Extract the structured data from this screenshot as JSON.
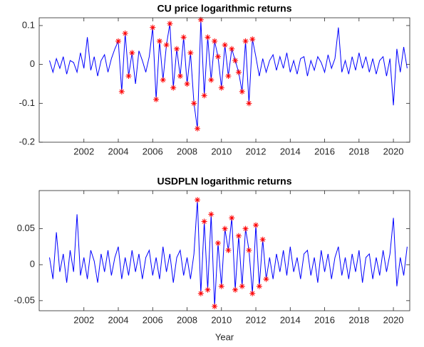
{
  "chart_data": [
    {
      "type": "line",
      "title": "CU price logarithmic returns",
      "xlim": [
        1999.4,
        2020.95
      ],
      "xticks": [
        2002,
        2004,
        2006,
        2008,
        2010,
        2012,
        2014,
        2016,
        2018,
        2020
      ],
      "ylim": [
        -0.2,
        0.12
      ],
      "yticks": [
        0.1,
        0,
        -0.1,
        -0.2
      ],
      "series": [
        {
          "color": "#0000ff",
          "line": true,
          "x": [
            2000,
            2000.2,
            2000.4,
            2000.6,
            2000.8,
            2001,
            2001.2,
            2001.4,
            2001.6,
            2001.8,
            2002,
            2002.2,
            2002.4,
            2002.6,
            2002.8,
            2003,
            2003.2,
            2003.4,
            2003.6,
            2003.8,
            2004,
            2004.2,
            2004.4,
            2004.6,
            2004.8,
            2005,
            2005.2,
            2005.4,
            2005.6,
            2005.8,
            2006,
            2006.2,
            2006.4,
            2006.6,
            2006.8,
            2007,
            2007.2,
            2007.4,
            2007.6,
            2007.8,
            2008,
            2008.2,
            2008.4,
            2008.6,
            2008.8,
            2009,
            2009.2,
            2009.4,
            2009.6,
            2009.8,
            2010,
            2010.2,
            2010.4,
            2010.6,
            2010.8,
            2011,
            2011.2,
            2011.4,
            2011.6,
            2011.8,
            2012,
            2012.2,
            2012.4,
            2012.6,
            2012.8,
            2013,
            2013.2,
            2013.4,
            2013.6,
            2013.8,
            2014,
            2014.2,
            2014.4,
            2014.6,
            2014.8,
            2015,
            2015.2,
            2015.4,
            2015.6,
            2015.8,
            2016,
            2016.2,
            2016.4,
            2016.6,
            2016.8,
            2017,
            2017.2,
            2017.4,
            2017.6,
            2017.8,
            2018,
            2018.2,
            2018.4,
            2018.6,
            2018.8,
            2019,
            2019.2,
            2019.4,
            2019.6,
            2019.8,
            2020,
            2020.2,
            2020.4,
            2020.6,
            2020.8
          ],
          "values": [
            0.01,
            -0.02,
            0.015,
            -0.01,
            0.02,
            -0.025,
            0.01,
            0.005,
            -0.02,
            0.03,
            -0.01,
            0.07,
            -0.015,
            0.02,
            -0.03,
            0.01,
            0.025,
            -0.02,
            0.015,
            0.04,
            0.06,
            -0.07,
            0.08,
            -0.03,
            0.03,
            -0.05,
            0.035,
            0.01,
            -0.02,
            0.02,
            0.095,
            -0.09,
            0.06,
            -0.04,
            0.05,
            0.105,
            -0.06,
            0.04,
            -0.03,
            0.07,
            -0.05,
            0.03,
            -0.1,
            -0.165,
            0.115,
            -0.08,
            0.07,
            -0.04,
            0.06,
            0.02,
            -0.06,
            0.05,
            -0.03,
            0.04,
            0.01,
            -0.02,
            -0.07,
            0.06,
            -0.1,
            0.065,
            0.02,
            -0.03,
            0.015,
            -0.02,
            0.01,
            0.025,
            -0.015,
            0.02,
            -0.01,
            0.03,
            -0.02,
            0.01,
            -0.025,
            0.015,
            0.02,
            -0.03,
            0.01,
            -0.015,
            0.02,
            0.005,
            -0.02,
            0.025,
            -0.01,
            0.015,
            0.095,
            -0.02,
            0.01,
            -0.025,
            0.02,
            -0.015,
            0.03,
            -0.01,
            0.02,
            -0.02,
            0.015,
            -0.025,
            0.01,
            0.02,
            -0.03,
            0.015,
            -0.105,
            0.04,
            -0.02,
            0.045,
            -0.01
          ]
        },
        {
          "color": "#ff0000",
          "line": false,
          "marker": "star",
          "x": [
            2004,
            2004.2,
            2004.4,
            2004.6,
            2004.8,
            2006,
            2006.2,
            2006.4,
            2006.6,
            2006.8,
            2007,
            2007.2,
            2007.4,
            2007.6,
            2007.8,
            2008,
            2008.2,
            2008.4,
            2008.6,
            2008.8,
            2009,
            2009.2,
            2009.4,
            2009.6,
            2009.8,
            2010,
            2010.2,
            2010.4,
            2010.6,
            2010.8,
            2011,
            2011.2,
            2011.4,
            2011.6,
            2011.8
          ],
          "values": [
            0.06,
            -0.07,
            0.08,
            -0.03,
            0.03,
            0.095,
            -0.09,
            0.06,
            -0.04,
            0.05,
            0.105,
            -0.06,
            0.04,
            -0.03,
            0.07,
            -0.05,
            0.03,
            -0.1,
            -0.165,
            0.115,
            -0.08,
            0.07,
            -0.04,
            0.06,
            0.02,
            -0.06,
            0.05,
            -0.03,
            0.04,
            0.01,
            -0.02,
            -0.07,
            0.06,
            -0.1,
            0.065
          ]
        }
      ]
    },
    {
      "type": "line",
      "title": "USDPLN logarithmic returns",
      "xlabel": "Year",
      "xlim": [
        1999.4,
        2020.95
      ],
      "xticks": [
        2002,
        2004,
        2006,
        2008,
        2010,
        2012,
        2014,
        2016,
        2018,
        2020
      ],
      "ylim": [
        -0.064,
        0.103
      ],
      "yticks": [
        0.05,
        0,
        -0.05
      ],
      "series": [
        {
          "color": "#0000ff",
          "line": true,
          "x": [
            2000,
            2000.2,
            2000.4,
            2000.6,
            2000.8,
            2001,
            2001.2,
            2001.4,
            2001.6,
            2001.8,
            2002,
            2002.2,
            2002.4,
            2002.6,
            2002.8,
            2003,
            2003.2,
            2003.4,
            2003.6,
            2003.8,
            2004,
            2004.2,
            2004.4,
            2004.6,
            2004.8,
            2005,
            2005.2,
            2005.4,
            2005.6,
            2005.8,
            2006,
            2006.2,
            2006.4,
            2006.6,
            2006.8,
            2007,
            2007.2,
            2007.4,
            2007.6,
            2007.8,
            2008,
            2008.2,
            2008.4,
            2008.6,
            2008.8,
            2009,
            2009.2,
            2009.4,
            2009.6,
            2009.8,
            2010,
            2010.2,
            2010.4,
            2010.6,
            2010.8,
            2011,
            2011.2,
            2011.4,
            2011.6,
            2011.8,
            2012,
            2012.2,
            2012.4,
            2012.6,
            2012.8,
            2013,
            2013.2,
            2013.4,
            2013.6,
            2013.8,
            2014,
            2014.2,
            2014.4,
            2014.6,
            2014.8,
            2015,
            2015.2,
            2015.4,
            2015.6,
            2015.8,
            2016,
            2016.2,
            2016.4,
            2016.6,
            2016.8,
            2017,
            2017.2,
            2017.4,
            2017.6,
            2017.8,
            2018,
            2018.2,
            2018.4,
            2018.6,
            2018.8,
            2019,
            2019.2,
            2019.4,
            2019.6,
            2019.8,
            2020,
            2020.2,
            2020.4,
            2020.6,
            2020.8
          ],
          "values": [
            0.01,
            -0.02,
            0.045,
            -0.01,
            0.015,
            -0.025,
            0.02,
            -0.01,
            0.07,
            -0.015,
            0.01,
            -0.02,
            0.02,
            0.005,
            -0.025,
            0.015,
            -0.01,
            0.02,
            -0.015,
            0.01,
            0.025,
            -0.02,
            0.01,
            -0.015,
            0.02,
            -0.01,
            0.015,
            -0.02,
            0.01,
            0.02,
            -0.015,
            0.01,
            -0.02,
            0.025,
            -0.01,
            0.015,
            -0.025,
            0.01,
            0.02,
            -0.015,
            0.01,
            -0.02,
            0.015,
            0.09,
            -0.04,
            0.06,
            -0.035,
            0.07,
            -0.058,
            0.03,
            -0.03,
            0.05,
            0.02,
            0.065,
            -0.035,
            0.04,
            -0.03,
            0.05,
            0.02,
            -0.04,
            0.055,
            -0.03,
            0.035,
            -0.02,
            0.01,
            -0.02,
            0.015,
            -0.01,
            0.02,
            -0.015,
            0.025,
            -0.01,
            0.01,
            -0.02,
            0.015,
            0.02,
            -0.015,
            0.01,
            -0.025,
            0.02,
            -0.01,
            0.015,
            -0.02,
            0.01,
            0.025,
            -0.015,
            0.01,
            -0.02,
            0.015,
            -0.01,
            0.02,
            -0.025,
            0.01,
            0.015,
            -0.02,
            0.01,
            -0.015,
            0.02,
            -0.01,
            0.015,
            0.065,
            -0.03,
            0.01,
            -0.015,
            0.025
          ]
        },
        {
          "color": "#ff0000",
          "line": false,
          "marker": "star",
          "x": [
            2008.6,
            2008.8,
            2009,
            2009.2,
            2009.4,
            2009.6,
            2009.8,
            2010,
            2010.2,
            2010.4,
            2010.6,
            2010.8,
            2011,
            2011.2,
            2011.4,
            2011.6,
            2011.8,
            2012,
            2012.2,
            2012.4,
            2012.6
          ],
          "values": [
            0.09,
            -0.04,
            0.06,
            -0.035,
            0.07,
            -0.058,
            0.03,
            -0.03,
            0.05,
            0.02,
            0.065,
            -0.035,
            0.04,
            -0.03,
            0.05,
            0.02,
            -0.04,
            0.055,
            -0.03,
            0.035,
            -0.02
          ]
        }
      ]
    }
  ]
}
